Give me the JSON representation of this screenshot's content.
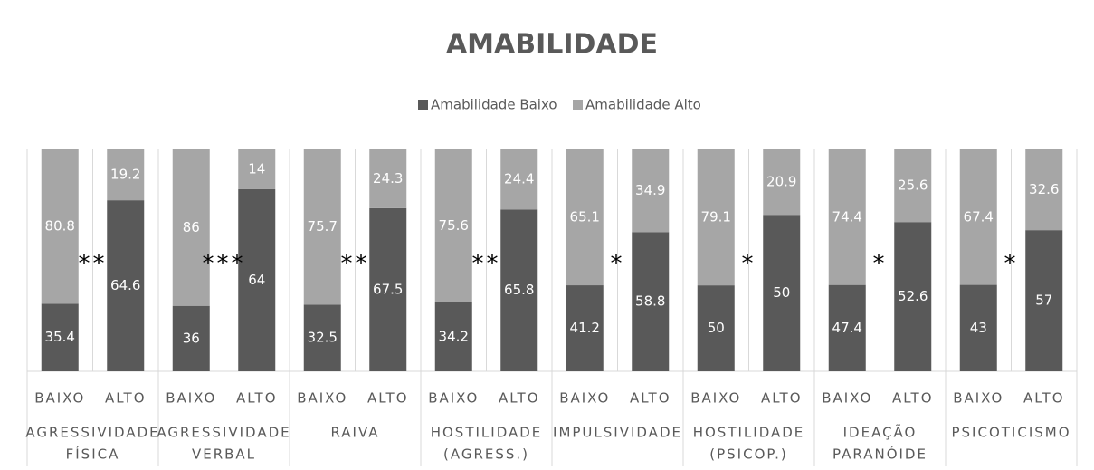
{
  "chart_data": {
    "type": "bar",
    "stacked": "percent",
    "title": "AMABILIDADE",
    "categories": [
      "BAIXO",
      "ALTO",
      "BAIXO",
      "ALTO",
      "BAIXO",
      "ALTO",
      "BAIXO",
      "ALTO",
      "BAIXO",
      "ALTO",
      "BAIXO",
      "ALTO",
      "BAIXO",
      "ALTO",
      "BAIXO",
      "ALTO"
    ],
    "groups": [
      [
        "AGRESSIVIDADE",
        "FÍSICA"
      ],
      [
        "AGRESSIVIDADE",
        "VERBAL"
      ],
      [
        "RAIVA"
      ],
      [
        "HOSTILIDADE",
        "(AGRESS.)"
      ],
      [
        "IMPULSIVIDADE"
      ],
      [
        "HOSTILIDADE",
        "(PSICOP.)"
      ],
      [
        "IDEAÇÃO",
        "PARANÓIDE"
      ],
      [
        "PSICOTICISMO"
      ]
    ],
    "annotations": [
      "**",
      "***",
      "**",
      "**",
      "*",
      "*",
      "*",
      "*"
    ],
    "series": [
      {
        "name": "Amabilidade Baixo",
        "color": "#595959",
        "values": [
          35.4,
          64.6,
          36,
          64,
          32.5,
          67.5,
          34.2,
          65.8,
          41.2,
          58.8,
          50,
          50,
          47.4,
          52.6,
          43,
          57
        ]
      },
      {
        "name": "Amabilidade Alto",
        "color": "#a6a6a6",
        "values": [
          80.8,
          19.2,
          86,
          14,
          75.7,
          24.3,
          75.6,
          24.4,
          65.1,
          34.9,
          79.1,
          20.9,
          74.4,
          25.6,
          67.4,
          32.6
        ]
      }
    ],
    "legend": "top"
  }
}
